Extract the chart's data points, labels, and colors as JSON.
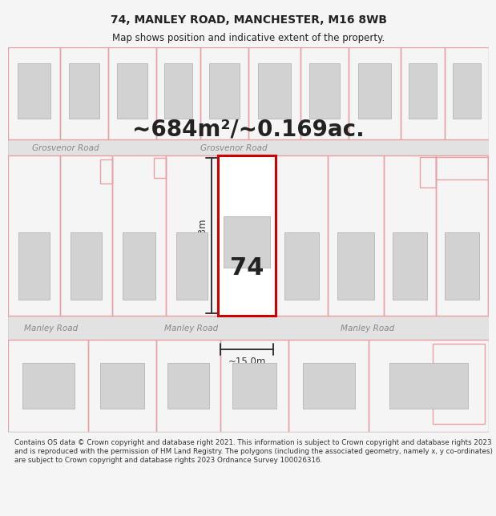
{
  "title_line1": "74, MANLEY ROAD, MANCHESTER, M16 8WB",
  "title_line2": "Map shows position and indicative extent of the property.",
  "area_text": "~684m²/~0.169ac.",
  "label_74": "74",
  "label_height": "~47.3m",
  "label_width": "~15.0m",
  "road_grosvenor": "Grosvenor Road",
  "road_manley": "Manley Road",
  "footnote": "Contains OS data © Crown copyright and database right 2021. This information is subject to Crown copyright and database rights 2023 and is reproduced with the permission of HM Land Registry. The polygons (including the associated geometry, namely x, y co-ordinates) are subject to Crown copyright and database rights 2023 Ordnance Survey 100026316.",
  "bg_color": "#f5f5f5",
  "map_bg": "#f0f0f0",
  "road_fill": "#e2e2e2",
  "building_fill": "#d2d2d2",
  "building_stroke": "#bbbbbb",
  "plot_stroke": "#e8a0a0",
  "highlight_fill": "#ffffff",
  "highlight_stroke": "#cc0000",
  "dim_color": "#333333",
  "text_color": "#222222",
  "road_text_color": "#888888",
  "title_fontsize": 10,
  "subtitle_fontsize": 8.5,
  "area_fontsize": 20,
  "road_fontsize": 7.5,
  "dim_fontsize": 8.5,
  "num_fontsize": 22
}
